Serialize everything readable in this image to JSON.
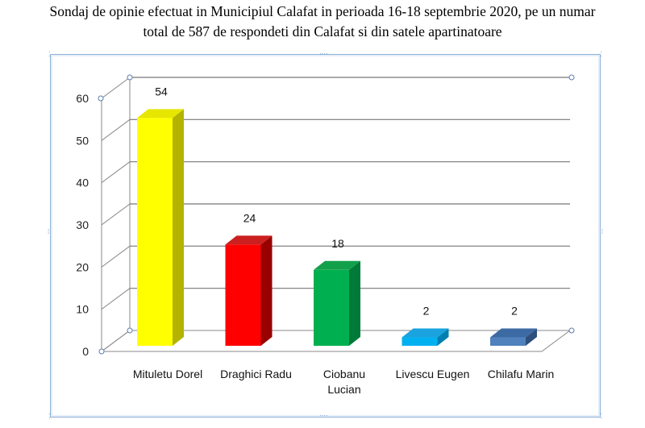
{
  "title_line1": "Sondaj de opinie efectuat in Municipiul Calafat in perioada 16-18 septembrie 2020, pe un numar",
  "title_line2": "total de 587 de respondeti din Calafat si din satele apartinatoare",
  "chart_data": {
    "type": "bar",
    "style": "3d-column",
    "categories": [
      [
        "Mituletu Dorel"
      ],
      [
        "Draghici Radu"
      ],
      [
        "Ciobanu",
        "Lucian"
      ],
      [
        "Livescu Eugen"
      ],
      [
        "Chilafu Marin"
      ]
    ],
    "values": [
      54,
      24,
      18,
      2,
      2
    ],
    "colors": [
      "#ffff00",
      "#ff0000",
      "#00b050",
      "#00b0f0",
      "#4f81bd"
    ],
    "top_colors": [
      "#e6e600",
      "#cc1f1f",
      "#13a04b",
      "#1aa3de",
      "#3c6aa3"
    ],
    "side_colors": [
      "#b3b300",
      "#990000",
      "#007a38",
      "#007fb0",
      "#2e4f7c"
    ],
    "yticks": [
      0,
      10,
      20,
      30,
      40,
      50,
      60
    ],
    "ylim": [
      0,
      60
    ],
    "grid": true,
    "data_labels": true
  }
}
